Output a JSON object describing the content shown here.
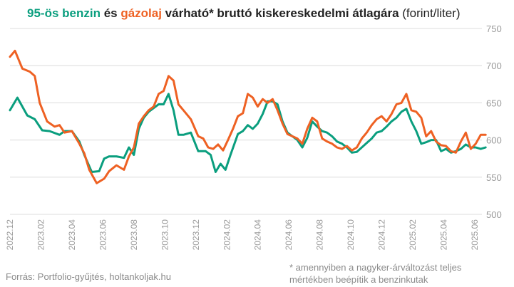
{
  "title": {
    "part1": "95-ös benzin",
    "part2": " és ",
    "part3": "gázolaj",
    "part4": " várható* bruttó kiskereskedelmi átlagára",
    "part5": " (forint/liter)"
  },
  "colors": {
    "benzin": "#0a9e7e",
    "gazolaj": "#ee6123",
    "grid": "#dcdcdc",
    "text": "#222222",
    "tick": "#9a9a9a"
  },
  "footer": {
    "source": "Forrás: Portfolio-gyűjtés, holtankoljak.hu",
    "note_line1": "* amennyiben a nagyker-árváltozást teljes",
    "note_line2": "mértékben beépítik a benzinkutak"
  },
  "chart_data": {
    "type": "line",
    "ylim": [
      500,
      750
    ],
    "y_ticks": [
      "750",
      "700",
      "650",
      "600",
      "550",
      "500"
    ],
    "x_ticks": [
      "2022.12",
      "2023.02",
      "2023.04",
      "2023.06",
      "2023.08",
      "2023.10",
      "2023.12",
      "2024.02",
      "2024.04",
      "2024.06",
      "2024.08",
      "2024.10",
      "2024.12",
      "2025.02",
      "2025.04",
      "2025.06"
    ],
    "grid": true,
    "series": [
      {
        "name": "95-ös benzin",
        "values": [
          [
            0.0,
            640
          ],
          [
            0.3,
            657
          ],
          [
            0.7,
            633
          ],
          [
            1.0,
            628
          ],
          [
            1.3,
            613
          ],
          [
            1.6,
            612
          ],
          [
            2.0,
            607
          ],
          [
            2.2,
            612
          ],
          [
            2.5,
            612
          ],
          [
            2.8,
            598
          ],
          [
            3.0,
            580
          ],
          [
            3.3,
            557
          ],
          [
            3.6,
            558
          ],
          [
            3.8,
            575
          ],
          [
            4.0,
            578
          ],
          [
            4.3,
            578
          ],
          [
            4.6,
            576
          ],
          [
            4.8,
            590
          ],
          [
            5.0,
            580
          ],
          [
            5.2,
            615
          ],
          [
            5.4,
            630
          ],
          [
            5.6,
            638
          ],
          [
            5.8,
            643
          ],
          [
            6.0,
            648
          ],
          [
            6.2,
            648
          ],
          [
            6.4,
            662
          ],
          [
            6.6,
            640
          ],
          [
            6.8,
            607
          ],
          [
            7.0,
            607
          ],
          [
            7.3,
            610
          ],
          [
            7.6,
            585
          ],
          [
            7.9,
            585
          ],
          [
            8.1,
            580
          ],
          [
            8.3,
            557
          ],
          [
            8.5,
            568
          ],
          [
            8.7,
            560
          ],
          [
            8.9,
            580
          ],
          [
            9.2,
            608
          ],
          [
            9.4,
            612
          ],
          [
            9.6,
            620
          ],
          [
            9.8,
            615
          ],
          [
            10.0,
            622
          ],
          [
            10.2,
            635
          ],
          [
            10.4,
            652
          ],
          [
            10.6,
            652
          ],
          [
            10.8,
            648
          ],
          [
            11.0,
            625
          ],
          [
            11.2,
            610
          ],
          [
            11.4,
            605
          ],
          [
            11.6,
            600
          ],
          [
            11.8,
            590
          ],
          [
            12.0,
            603
          ],
          [
            12.2,
            625
          ],
          [
            12.4,
            618
          ],
          [
            12.6,
            612
          ],
          [
            12.8,
            610
          ],
          [
            13.0,
            605
          ],
          [
            13.2,
            598
          ],
          [
            13.4,
            595
          ],
          [
            13.6,
            590
          ],
          [
            13.8,
            583
          ],
          [
            14.0,
            584
          ],
          [
            14.2,
            590
          ],
          [
            14.4,
            596
          ],
          [
            14.6,
            602
          ],
          [
            14.8,
            610
          ],
          [
            15.0,
            612
          ],
          [
            15.2,
            618
          ],
          [
            15.4,
            625
          ],
          [
            15.6,
            630
          ],
          [
            15.8,
            638
          ],
          [
            16.0,
            642
          ],
          [
            16.2,
            625
          ],
          [
            16.4,
            612
          ],
          [
            16.6,
            595
          ],
          [
            16.8,
            597
          ],
          [
            17.0,
            600
          ],
          [
            17.2,
            600
          ],
          [
            17.4,
            585
          ],
          [
            17.6,
            588
          ],
          [
            17.8,
            583
          ],
          [
            18.0,
            585
          ],
          [
            18.2,
            588
          ],
          [
            18.4,
            594
          ],
          [
            18.6,
            590
          ],
          [
            18.8,
            590
          ],
          [
            19.0,
            588
          ],
          [
            19.2,
            590
          ]
        ]
      },
      {
        "name": "gázolaj",
        "values": [
          [
            0.0,
            712
          ],
          [
            0.2,
            720
          ],
          [
            0.5,
            696
          ],
          [
            0.8,
            692
          ],
          [
            1.0,
            686
          ],
          [
            1.2,
            650
          ],
          [
            1.5,
            625
          ],
          [
            1.8,
            618
          ],
          [
            2.0,
            620
          ],
          [
            2.2,
            610
          ],
          [
            2.5,
            612
          ],
          [
            2.8,
            595
          ],
          [
            3.0,
            582
          ],
          [
            3.2,
            560
          ],
          [
            3.5,
            542
          ],
          [
            3.8,
            548
          ],
          [
            4.0,
            558
          ],
          [
            4.3,
            566
          ],
          [
            4.6,
            560
          ],
          [
            4.8,
            578
          ],
          [
            5.0,
            590
          ],
          [
            5.2,
            622
          ],
          [
            5.4,
            632
          ],
          [
            5.6,
            640
          ],
          [
            5.8,
            645
          ],
          [
            6.0,
            662
          ],
          [
            6.2,
            666
          ],
          [
            6.4,
            686
          ],
          [
            6.6,
            680
          ],
          [
            6.8,
            648
          ],
          [
            7.0,
            640
          ],
          [
            7.3,
            628
          ],
          [
            7.6,
            605
          ],
          [
            7.8,
            602
          ],
          [
            8.0,
            590
          ],
          [
            8.2,
            588
          ],
          [
            8.4,
            594
          ],
          [
            8.6,
            586
          ],
          [
            8.8,
            600
          ],
          [
            9.0,
            615
          ],
          [
            9.2,
            632
          ],
          [
            9.4,
            636
          ],
          [
            9.6,
            662
          ],
          [
            9.8,
            657
          ],
          [
            10.0,
            645
          ],
          [
            10.2,
            655
          ],
          [
            10.4,
            650
          ],
          [
            10.6,
            655
          ],
          [
            10.8,
            640
          ],
          [
            11.0,
            622
          ],
          [
            11.2,
            608
          ],
          [
            11.4,
            605
          ],
          [
            11.6,
            602
          ],
          [
            11.8,
            595
          ],
          [
            12.0,
            615
          ],
          [
            12.2,
            630
          ],
          [
            12.4,
            625
          ],
          [
            12.6,
            602
          ],
          [
            12.8,
            598
          ],
          [
            13.0,
            595
          ],
          [
            13.2,
            590
          ],
          [
            13.4,
            588
          ],
          [
            13.6,
            592
          ],
          [
            13.8,
            586
          ],
          [
            14.0,
            590
          ],
          [
            14.2,
            602
          ],
          [
            14.4,
            610
          ],
          [
            14.6,
            620
          ],
          [
            14.8,
            628
          ],
          [
            15.0,
            632
          ],
          [
            15.2,
            625
          ],
          [
            15.4,
            635
          ],
          [
            15.6,
            648
          ],
          [
            15.8,
            650
          ],
          [
            16.0,
            662
          ],
          [
            16.2,
            640
          ],
          [
            16.4,
            638
          ],
          [
            16.6,
            630
          ],
          [
            16.8,
            605
          ],
          [
            17.0,
            612
          ],
          [
            17.2,
            598
          ],
          [
            17.4,
            593
          ],
          [
            17.6,
            592
          ],
          [
            17.8,
            585
          ],
          [
            18.0,
            583
          ],
          [
            18.2,
            598
          ],
          [
            18.4,
            610
          ],
          [
            18.6,
            588
          ],
          [
            18.8,
            595
          ],
          [
            19.0,
            607
          ],
          [
            19.2,
            607
          ]
        ]
      }
    ]
  }
}
